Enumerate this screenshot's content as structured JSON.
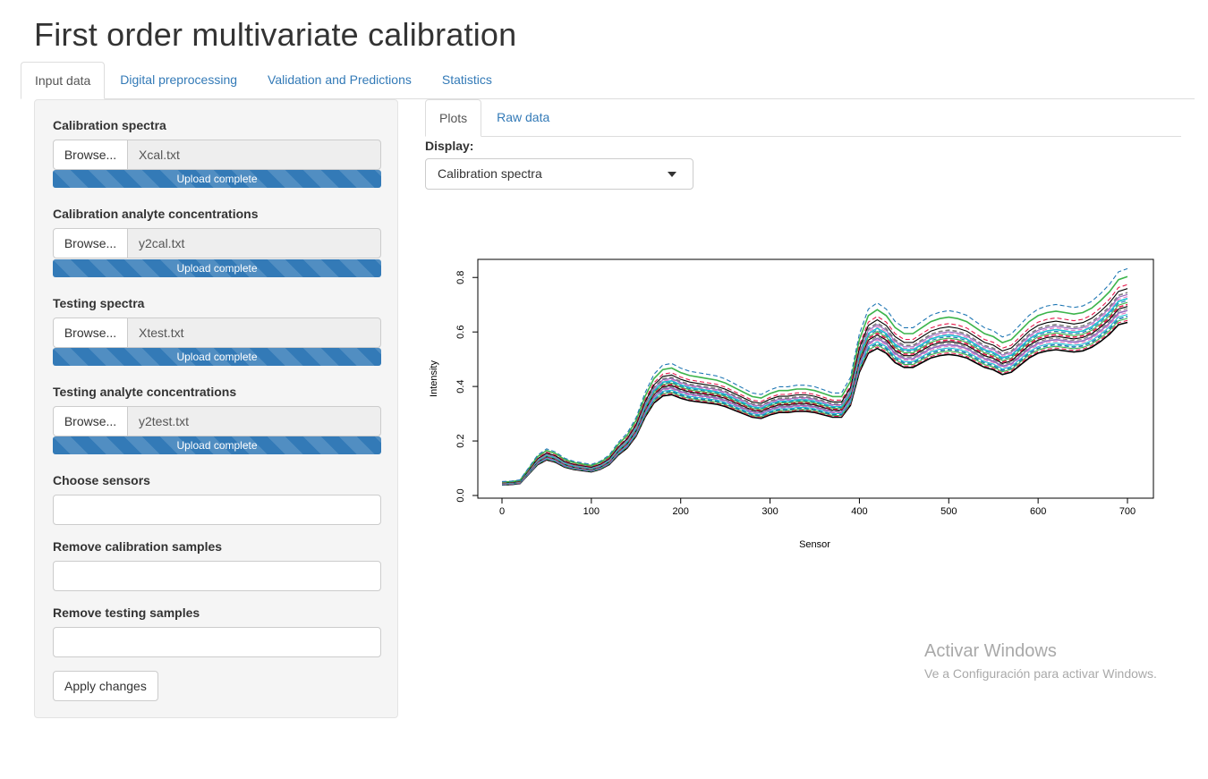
{
  "app": {
    "title": "First order multivariate calibration"
  },
  "main_tabs": [
    {
      "label": "Input data",
      "active": true
    },
    {
      "label": "Digital preprocessing",
      "active": false
    },
    {
      "label": "Validation and Predictions",
      "active": false
    },
    {
      "label": "Statistics",
      "active": false
    }
  ],
  "sidebar": {
    "file_inputs": [
      {
        "label": "Calibration spectra",
        "button": "Browse...",
        "file": "Xcal.txt",
        "status": "Upload complete",
        "progress": 1.0
      },
      {
        "label": "Calibration analyte concentrations",
        "button": "Browse...",
        "file": "y2cal.txt",
        "status": "Upload complete",
        "progress": 1.0
      },
      {
        "label": "Testing spectra",
        "button": "Browse...",
        "file": "Xtest.txt",
        "status": "Upload complete",
        "progress": 1.0
      },
      {
        "label": "Testing analyte concentrations",
        "button": "Browse...",
        "file": "y2test.txt",
        "status": "Upload complete",
        "progress": 1.0
      }
    ],
    "text_inputs": [
      {
        "label": "Choose sensors",
        "value": ""
      },
      {
        "label": "Remove calibration samples",
        "value": ""
      },
      {
        "label": "Remove testing samples",
        "value": ""
      }
    ],
    "apply_button": "Apply changes"
  },
  "sub_tabs": [
    {
      "label": "Plots",
      "active": true
    },
    {
      "label": "Raw data",
      "active": false
    }
  ],
  "display": {
    "label": "Display:",
    "selected": "Calibration spectra"
  },
  "watermark": {
    "title": "Activar Windows",
    "subtitle": "Ve a Configuración para activar Windows."
  },
  "colors": {
    "link": "#337ab7",
    "progress": "#337ab7",
    "sidebar_bg": "#f5f5f5"
  },
  "chart_data": {
    "type": "line",
    "xlabel": "Sensor",
    "ylabel": "Intensity",
    "xlim": [
      0,
      700
    ],
    "ylim": [
      0,
      0.85
    ],
    "xticks": [
      "0",
      "100",
      "200",
      "300",
      "400",
      "500",
      "600",
      "700"
    ],
    "yticks": [
      "0.0",
      "0.2",
      "0.4",
      "0.6",
      "0.8"
    ],
    "grid": false,
    "legend": "none",
    "n_series": 20,
    "series_colors": [
      "#000000",
      "#e6194b",
      "#3cb44b",
      "#1f77b4",
      "#17becf",
      "#e377c2",
      "#9467bd",
      "#7f7f7f"
    ],
    "x": [
      0,
      10,
      20,
      30,
      40,
      50,
      60,
      70,
      80,
      90,
      100,
      110,
      120,
      130,
      140,
      150,
      160,
      170,
      180,
      190,
      200,
      210,
      220,
      230,
      240,
      250,
      260,
      270,
      280,
      290,
      300,
      310,
      320,
      330,
      340,
      350,
      360,
      370,
      380,
      390,
      400,
      410,
      420,
      430,
      440,
      450,
      460,
      470,
      480,
      490,
      500,
      510,
      520,
      530,
      540,
      550,
      560,
      570,
      580,
      590,
      600,
      610,
      620,
      630,
      640,
      650,
      660,
      670,
      680,
      690,
      700
    ],
    "mean_spectrum": [
      0.045,
      0.046,
      0.05,
      0.09,
      0.13,
      0.15,
      0.14,
      0.12,
      0.11,
      0.105,
      0.1,
      0.11,
      0.13,
      0.17,
      0.2,
      0.25,
      0.33,
      0.39,
      0.42,
      0.425,
      0.41,
      0.4,
      0.395,
      0.39,
      0.385,
      0.375,
      0.36,
      0.345,
      0.33,
      0.325,
      0.34,
      0.35,
      0.35,
      0.355,
      0.355,
      0.35,
      0.34,
      0.33,
      0.33,
      0.38,
      0.52,
      0.6,
      0.62,
      0.6,
      0.56,
      0.54,
      0.54,
      0.56,
      0.58,
      0.59,
      0.595,
      0.59,
      0.58,
      0.56,
      0.54,
      0.53,
      0.51,
      0.52,
      0.55,
      0.58,
      0.6,
      0.61,
      0.615,
      0.61,
      0.605,
      0.61,
      0.625,
      0.65,
      0.68,
      0.72,
      0.73
    ],
    "series_scale": [
      0.87,
      0.88,
      0.89,
      0.9,
      0.91,
      0.92,
      0.93,
      0.94,
      0.95,
      0.96,
      0.97,
      0.98,
      0.99,
      1.0,
      1.01,
      1.02,
      1.04,
      1.06,
      1.1,
      1.14
    ]
  }
}
